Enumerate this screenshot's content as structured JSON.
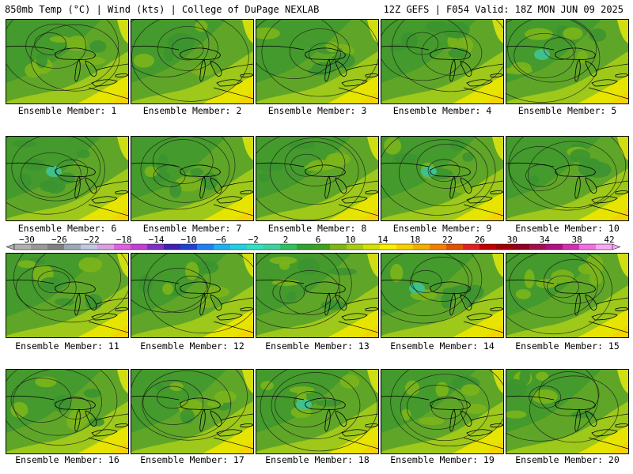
{
  "header": {
    "left": "850mb Temp (°C) | Wind (kts) | College of DuPage NEXLAB",
    "right": "12Z GEFS | F054 Valid: 18Z MON JUN 09 2025"
  },
  "colorbar": {
    "ticks": [
      "−30",
      "−26",
      "−22",
      "−18",
      "−14",
      "−10",
      "−6",
      "−2",
      "2",
      "6",
      "10",
      "14",
      "18",
      "22",
      "26",
      "30",
      "34",
      "38",
      "42"
    ],
    "colors": [
      "#b0b0b0",
      "#989898",
      "#808080",
      "#9aa8b8",
      "#c0c8e0",
      "#d8a0e0",
      "#e060e0",
      "#c040d0",
      "#8030c0",
      "#4020b0",
      "#2040d0",
      "#2080f0",
      "#20b0f0",
      "#20d0e0",
      "#30e0c0",
      "#40d0a0",
      "#30c060",
      "#30a030",
      "#40a020",
      "#7cb51a",
      "#a8cc14",
      "#d4e000",
      "#f8f000",
      "#f8d000",
      "#f0b000",
      "#f08000",
      "#e05000",
      "#e02020",
      "#c00000",
      "#a00000",
      "#900020",
      "#a01050",
      "#b01080",
      "#d030b0",
      "#f070e0",
      "#f8a8f0"
    ]
  },
  "members": [
    {
      "label": "Ensemble Member: 1"
    },
    {
      "label": "Ensemble Member: 2"
    },
    {
      "label": "Ensemble Member: 3"
    },
    {
      "label": "Ensemble Member: 4"
    },
    {
      "label": "Ensemble Member: 5"
    },
    {
      "label": "Ensemble Member: 6"
    },
    {
      "label": "Ensemble Member: 7"
    },
    {
      "label": "Ensemble Member: 8"
    },
    {
      "label": "Ensemble Member: 9"
    },
    {
      "label": "Ensemble Member: 10"
    },
    {
      "label": "Ensemble Member: 11"
    },
    {
      "label": "Ensemble Member: 12"
    },
    {
      "label": "Ensemble Member: 13"
    },
    {
      "label": "Ensemble Member: 14"
    },
    {
      "label": "Ensemble Member: 15"
    },
    {
      "label": "Ensemble Member: 16"
    },
    {
      "label": "Ensemble Member: 17"
    },
    {
      "label": "Ensemble Member: 18"
    },
    {
      "label": "Ensemble Member: 19"
    },
    {
      "label": "Ensemble Member: 20"
    }
  ]
}
